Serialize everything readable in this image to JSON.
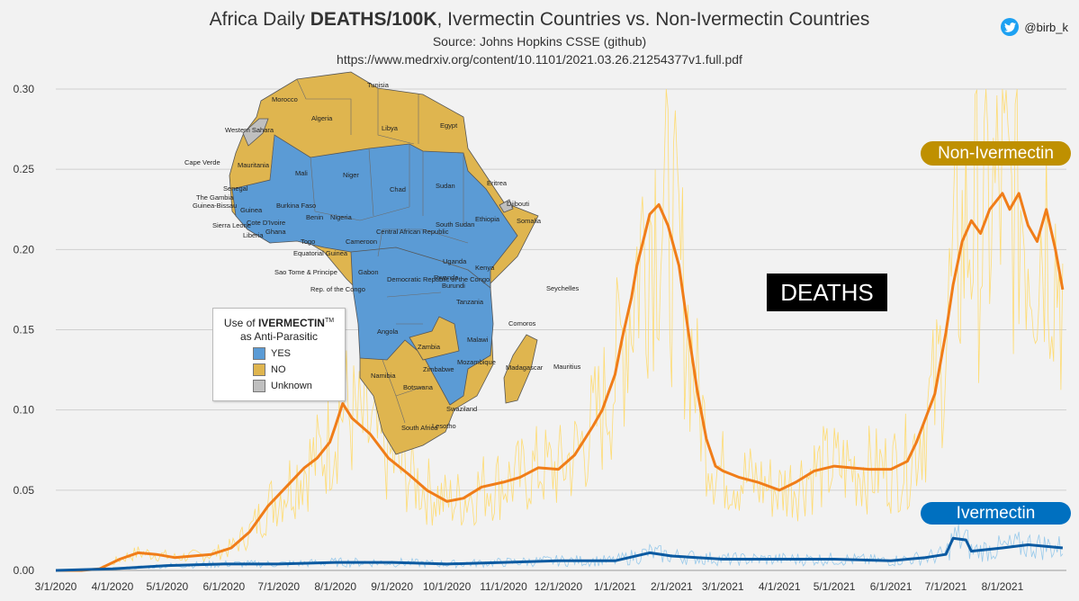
{
  "header": {
    "title_prefix": "Africa Daily ",
    "title_bold": "DEATHS/100K",
    "title_suffix": ", Ivermectin Countries vs. Non-Ivermectin Countries",
    "source": "Source: Johns Hopkins CSSE (github)",
    "url": "https://www.medrxiv.org/content/10.1101/2021.03.26.21254377v1.full.pdf",
    "handle": "@birb_k"
  },
  "overlay": {
    "deaths_label": "DEATHS",
    "non_ivermectin_label": "Non-Ivermectin",
    "ivermectin_label": "Ivermectin"
  },
  "legend": {
    "title_line1_prefix": "Use of ",
    "title_line1_bold": "IVERMECTIN",
    "title_line1_tm": "TM",
    "title_line2": "as Anti-Parasitic",
    "items": [
      {
        "label": "YES",
        "color": "#5b9bd5"
      },
      {
        "label": "NO",
        "color": "#dfb54f"
      },
      {
        "label": "Unknown",
        "color": "#bfbfbf"
      }
    ]
  },
  "map": {
    "labels": [
      "Tunisia",
      "Morocco",
      "Algeria",
      "Libya",
      "Egypt",
      "Western Sahara",
      "Mauritania",
      "Mali",
      "Niger",
      "Cape Verde",
      "Senegal",
      "The Gambia",
      "Guinea-Bissau",
      "Guinea",
      "Sierra Leone",
      "Liberia",
      "Cote D'Ivoire",
      "Ghana",
      "Togo",
      "Benin",
      "Burkina Faso",
      "Nigeria",
      "Chad",
      "Sudan",
      "Eritrea",
      "Djibouti",
      "Ethiopia",
      "Somalia",
      "South Sudan",
      "Central African Republic",
      "Cameroon",
      "Equatorial Guinea",
      "Sao Tome & Principe",
      "Gabon",
      "Rep. of the Congo",
      "Democratic Republic of the Congo",
      "Uganda",
      "Kenya",
      "Rwanda",
      "Burundi",
      "Tanzania",
      "Seychelles",
      "Comoros",
      "Angola",
      "Zambia",
      "Malawi",
      "Mozambique",
      "Madagascar",
      "Mauritius",
      "Namibia",
      "Zimbabwe",
      "Botswana",
      "Swaziland",
      "Lesotho",
      "South Africa"
    ]
  },
  "colors": {
    "non_ivermectin_avg": "#f07d19",
    "non_ivermectin_daily": "#ffd966",
    "ivermectin_avg": "#0b5aa1",
    "ivermectin_daily": "#8fc5ea",
    "yes": "#5b9bd5",
    "no": "#dfb54f",
    "unknown": "#bfbfbf"
  },
  "chart_data": {
    "type": "line",
    "title": "Africa Daily DEATHS/100K, Ivermectin Countries vs. Non-Ivermectin Countries",
    "xlabel": "",
    "ylabel": "",
    "ylim": [
      0,
      0.3
    ],
    "yticks": [
      "0.00",
      "0.05",
      "0.10",
      "0.15",
      "0.20",
      "0.25",
      "0.30"
    ],
    "xlim": [
      "2020-03-01",
      "2021-09-05"
    ],
    "xticks": [
      {
        "date": "2020-03-01",
        "label": "3/1/2020"
      },
      {
        "date": "2020-04-01",
        "label": "4/1/2020"
      },
      {
        "date": "2020-05-01",
        "label": "5/1/2020"
      },
      {
        "date": "2020-06-01",
        "label": "6/1/2020"
      },
      {
        "date": "2020-07-01",
        "label": "7/1/2020"
      },
      {
        "date": "2020-08-01",
        "label": "8/1/2020"
      },
      {
        "date": "2020-09-01",
        "label": "9/1/2020"
      },
      {
        "date": "2020-10-01",
        "label": "10/1/2020"
      },
      {
        "date": "2020-11-01",
        "label": "11/1/2020"
      },
      {
        "date": "2020-12-01",
        "label": "12/1/2020"
      },
      {
        "date": "2021-01-01",
        "label": "1/1/2021"
      },
      {
        "date": "2021-02-01",
        "label": "2/1/2021"
      },
      {
        "date": "2021-03-01",
        "label": "3/1/2021"
      },
      {
        "date": "2021-04-01",
        "label": "4/1/2021"
      },
      {
        "date": "2021-05-01",
        "label": "5/1/2021"
      },
      {
        "date": "2021-06-01",
        "label": "6/1/2021"
      },
      {
        "date": "2021-07-01",
        "label": "7/1/2021"
      },
      {
        "date": "2021-08-01",
        "label": "8/1/2021"
      }
    ],
    "grid": true,
    "series": [
      {
        "name": "Non-Ivermectin",
        "x": [
          "2020-03-01",
          "2020-03-15",
          "2020-03-25",
          "2020-04-05",
          "2020-04-15",
          "2020-04-25",
          "2020-05-05",
          "2020-05-15",
          "2020-05-25",
          "2020-06-05",
          "2020-06-15",
          "2020-06-25",
          "2020-07-05",
          "2020-07-15",
          "2020-07-22",
          "2020-07-29",
          "2020-08-01",
          "2020-08-05",
          "2020-08-10",
          "2020-08-20",
          "2020-08-30",
          "2020-09-10",
          "2020-09-20",
          "2020-10-01",
          "2020-10-10",
          "2020-10-20",
          "2020-11-01",
          "2020-11-10",
          "2020-11-20",
          "2020-12-01",
          "2020-12-10",
          "2020-12-20",
          "2020-12-25",
          "2021-01-01",
          "2021-01-05",
          "2021-01-10",
          "2021-01-13",
          "2021-01-17",
          "2021-01-20",
          "2021-01-25",
          "2021-01-30",
          "2021-02-05",
          "2021-02-10",
          "2021-02-15",
          "2021-02-20",
          "2021-02-25",
          "2021-03-01",
          "2021-03-10",
          "2021-03-20",
          "2021-04-01",
          "2021-04-10",
          "2021-04-20",
          "2021-05-01",
          "2021-05-10",
          "2021-05-20",
          "2021-06-01",
          "2021-06-10",
          "2021-06-15",
          "2021-06-20",
          "2021-06-25",
          "2021-07-01",
          "2021-07-05",
          "2021-07-10",
          "2021-07-15",
          "2021-07-20",
          "2021-07-25",
          "2021-08-01",
          "2021-08-05",
          "2021-08-10",
          "2021-08-15",
          "2021-08-20",
          "2021-08-25",
          "2021-08-30",
          "2021-09-03"
        ],
        "y": [
          0.0,
          0.0,
          0.001,
          0.007,
          0.011,
          0.01,
          0.008,
          0.009,
          0.01,
          0.014,
          0.024,
          0.04,
          0.052,
          0.064,
          0.07,
          0.08,
          0.09,
          0.104,
          0.095,
          0.085,
          0.07,
          0.06,
          0.05,
          0.043,
          0.045,
          0.052,
          0.055,
          0.058,
          0.064,
          0.063,
          0.072,
          0.09,
          0.1,
          0.122,
          0.145,
          0.17,
          0.19,
          0.208,
          0.222,
          0.228,
          0.215,
          0.19,
          0.15,
          0.112,
          0.082,
          0.065,
          0.062,
          0.058,
          0.055,
          0.05,
          0.055,
          0.062,
          0.065,
          0.064,
          0.063,
          0.063,
          0.068,
          0.08,
          0.095,
          0.11,
          0.148,
          0.178,
          0.205,
          0.218,
          0.21,
          0.225,
          0.235,
          0.225,
          0.235,
          0.215,
          0.205,
          0.225,
          0.2,
          0.175
        ]
      },
      {
        "name": "Ivermectin",
        "x": [
          "2020-03-01",
          "2020-04-01",
          "2020-05-01",
          "2020-06-01",
          "2020-07-01",
          "2020-08-01",
          "2020-09-01",
          "2020-10-01",
          "2020-11-01",
          "2020-12-01",
          "2021-01-01",
          "2021-01-20",
          "2021-02-01",
          "2021-03-01",
          "2021-04-01",
          "2021-05-01",
          "2021-06-01",
          "2021-06-20",
          "2021-07-01",
          "2021-07-05",
          "2021-07-12",
          "2021-07-15",
          "2021-08-01",
          "2021-08-15",
          "2021-09-03"
        ],
        "y": [
          0.0,
          0.001,
          0.003,
          0.004,
          0.004,
          0.005,
          0.005,
          0.004,
          0.005,
          0.006,
          0.006,
          0.011,
          0.009,
          0.007,
          0.007,
          0.007,
          0.006,
          0.008,
          0.01,
          0.02,
          0.019,
          0.012,
          0.014,
          0.016,
          0.014
        ]
      }
    ]
  }
}
